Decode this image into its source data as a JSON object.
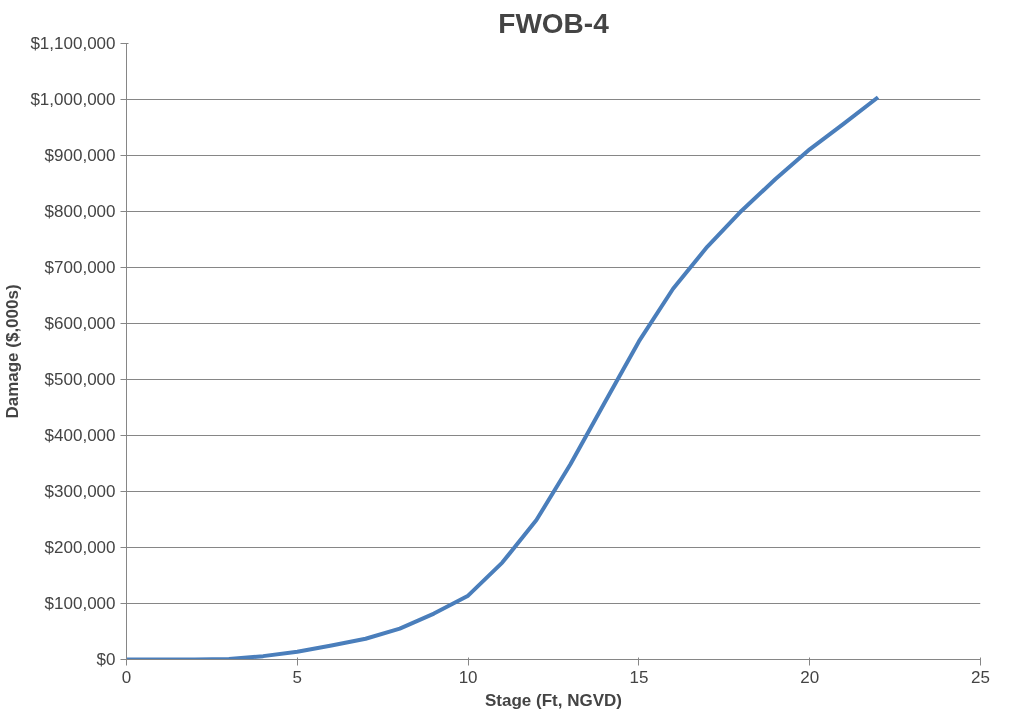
{
  "chart_data": {
    "type": "line",
    "title": "FWOB-4",
    "xlabel": "Stage (Ft, NGVD)",
    "ylabel": "Damage ($,000s)",
    "x": [
      0,
      1,
      2,
      3,
      4,
      5,
      6,
      7,
      8,
      9,
      10,
      11,
      12,
      13,
      14,
      15,
      16,
      17,
      18,
      19,
      20,
      21,
      22
    ],
    "series": [
      {
        "color": "#4a7ebb",
        "values": [
          0,
          0,
          0,
          1000,
          6000,
          14000,
          25000,
          37000,
          55000,
          82000,
          114000,
          173000,
          249000,
          349000,
          459000,
          568000,
          662000,
          737000,
          801000,
          858000,
          911000,
          957000,
          1004000
        ]
      }
    ],
    "xlim": [
      0,
      25
    ],
    "xticks": [
      0,
      5,
      10,
      15,
      20,
      25
    ],
    "ylim": [
      0,
      1100000
    ],
    "yticks": [
      {
        "value": 0,
        "label": "$0"
      },
      {
        "value": 100000,
        "label": "$100,000"
      },
      {
        "value": 200000,
        "label": "$200,000"
      },
      {
        "value": 300000,
        "label": "$300,000"
      },
      {
        "value": 400000,
        "label": "$400,000"
      },
      {
        "value": 500000,
        "label": "$500,000"
      },
      {
        "value": 600000,
        "label": "$600,000"
      },
      {
        "value": 700000,
        "label": "$700,000"
      },
      {
        "value": 800000,
        "label": "$800,000"
      },
      {
        "value": 900000,
        "label": "$900,000"
      },
      {
        "value": 1000000,
        "label": "$1,000,000"
      },
      {
        "value": 1100000,
        "label": "$1,100,000"
      }
    ],
    "grid": "y",
    "marker": "none",
    "line_style": "solid"
  }
}
